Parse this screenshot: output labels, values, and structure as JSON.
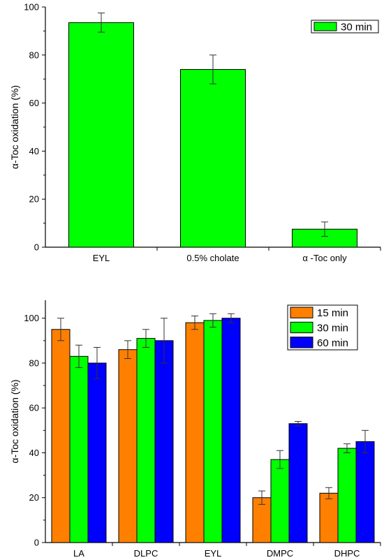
{
  "chart_data": [
    {
      "type": "bar",
      "ylabel": "α-Toc oxidation (%)",
      "ylim": [
        0,
        100
      ],
      "yticks": [
        0,
        20,
        40,
        60,
        80,
        100
      ],
      "categories": [
        "EYL",
        "0.5% cholate",
        "α -Toc only"
      ],
      "series": [
        {
          "name": "30 min",
          "color": "#00ff00",
          "values": [
            93.5,
            74,
            7.5
          ],
          "errors": [
            4,
            6,
            3
          ]
        }
      ],
      "legend": "top-right",
      "grid": false
    },
    {
      "type": "bar",
      "ylabel": "α-Toc oxidation (%)",
      "ylim": [
        0,
        108
      ],
      "yticks": [
        0,
        20,
        40,
        60,
        80,
        100
      ],
      "categories": [
        "LA",
        "DLPC",
        "EYL",
        "DMPC",
        "DHPC"
      ],
      "series": [
        {
          "name": "15 min",
          "color": "#ff7f00",
          "values": [
            95,
            86,
            98,
            20,
            22
          ],
          "errors": [
            5,
            4,
            3,
            3,
            2.5
          ]
        },
        {
          "name": "30 min",
          "color": "#00ff00",
          "values": [
            83,
            91,
            99,
            37,
            42
          ],
          "errors": [
            5,
            4,
            3,
            4,
            2
          ]
        },
        {
          "name": "60 min",
          "color": "#0000ff",
          "values": [
            80,
            90,
            100,
            53,
            45
          ],
          "errors": [
            7,
            10,
            2,
            1,
            5
          ]
        }
      ],
      "legend": "top-right",
      "grid": false
    }
  ]
}
